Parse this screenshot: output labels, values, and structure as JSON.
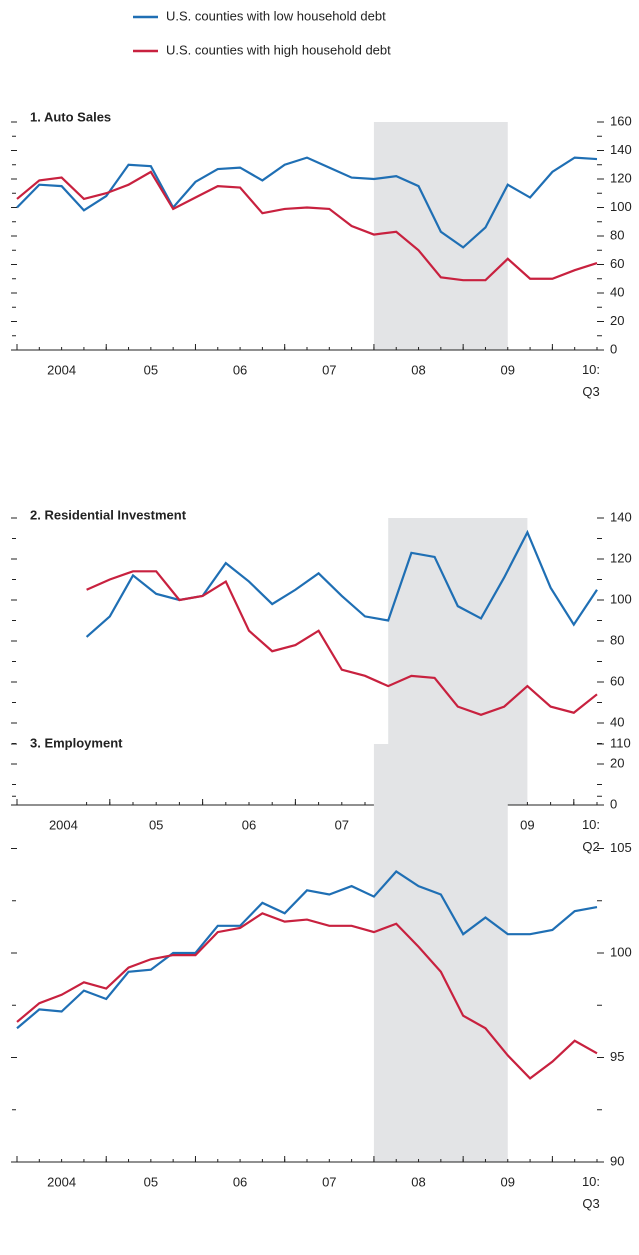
{
  "chart_data": [
    {
      "type": "line",
      "title": "1. Auto Sales",
      "x": [
        2004,
        2004.25,
        2004.5,
        2004.75,
        2005,
        2005.25,
        2005.5,
        2005.75,
        2006,
        2006.25,
        2006.5,
        2006.75,
        2007,
        2007.25,
        2007.5,
        2007.75,
        2008,
        2008.25,
        2008.5,
        2008.75,
        2009,
        2009.25,
        2009.5,
        2009.75,
        2010,
        2010.25,
        2010.5
      ],
      "xlim": [
        2004,
        2010.5
      ],
      "xticks": [
        2004,
        2005,
        2006,
        2007,
        2008,
        2009,
        2010
      ],
      "xlabels": [
        {
          "value": 2004.5,
          "label": "2004"
        },
        {
          "value": 2005.5,
          "label": "05"
        },
        {
          "value": 2006.5,
          "label": "06"
        },
        {
          "value": 2007.5,
          "label": "07"
        },
        {
          "value": 2008.5,
          "label": "08"
        },
        {
          "value": 2009.5,
          "label": "09"
        },
        {
          "value": 2010.5,
          "label": "10:\nQ3"
        }
      ],
      "ylim": [
        0,
        160
      ],
      "yticks": [
        0,
        20,
        40,
        60,
        80,
        100,
        120,
        140,
        160
      ],
      "yminorticks": [
        10,
        30,
        50,
        70,
        90,
        110,
        130,
        150
      ],
      "shade": [
        2008,
        2009.5
      ],
      "series": [
        {
          "name": "U.S. counties with low household debt",
          "color": "#1f6fb4",
          "values": [
            100,
            116,
            115,
            98,
            108,
            130,
            129,
            100,
            118,
            127,
            128,
            119,
            130,
            135,
            128,
            121,
            120,
            122,
            115,
            83,
            72,
            86,
            116,
            107,
            125,
            135,
            134
          ]
        },
        {
          "name": "U.S. counties with high household debt",
          "color": "#c8213f",
          "values": [
            106,
            119,
            121,
            106,
            110,
            116,
            125,
            99,
            107,
            115,
            114,
            96,
            99,
            100,
            99,
            87,
            81,
            83,
            70,
            51,
            49,
            49,
            64,
            50,
            50,
            56,
            61
          ]
        }
      ]
    },
    {
      "type": "line",
      "title": "2. Residential Investment",
      "x": [
        2004.75,
        2005,
        2005.25,
        2005.5,
        2005.75,
        2006,
        2006.25,
        2006.5,
        2006.75,
        2007,
        2007.25,
        2007.5,
        2007.75,
        2008,
        2008.25,
        2008.5,
        2008.75,
        2009,
        2009.25,
        2009.5,
        2009.75,
        2010,
        2010.25
      ],
      "xlim": [
        2004,
        2010.25
      ],
      "xticks": [
        2004,
        2005,
        2006,
        2007,
        2008,
        2009,
        2010
      ],
      "xlabels": [
        {
          "value": 2004.5,
          "label": "2004"
        },
        {
          "value": 2005.5,
          "label": "05"
        },
        {
          "value": 2006.5,
          "label": "06"
        },
        {
          "value": 2007.5,
          "label": "07"
        },
        {
          "value": 2008.5,
          "label": "08"
        },
        {
          "value": 2009.5,
          "label": "09"
        },
        {
          "value": 2010.25,
          "label": "10:\nQ2"
        }
      ],
      "ylim": [
        0,
        140
      ],
      "yticks": [
        0,
        20,
        40,
        60,
        80,
        100,
        120,
        140
      ],
      "yminorticks": [
        10,
        30,
        50,
        70,
        90,
        110,
        130
      ],
      "shade": [
        2008,
        2009.5
      ],
      "series": [
        {
          "color": "#1f6fb4",
          "values": [
            82,
            92,
            112,
            103,
            100,
            102,
            118,
            109,
            98,
            105,
            113,
            102,
            92,
            90,
            123,
            121,
            97,
            91,
            111,
            133,
            106,
            88,
            105
          ]
        },
        {
          "color": "#c8213f",
          "values": [
            105,
            110,
            114,
            114,
            100,
            102,
            109,
            85,
            75,
            78,
            85,
            66,
            63,
            58,
            63,
            62,
            48,
            44,
            48,
            58,
            48,
            45,
            54
          ]
        }
      ]
    },
    {
      "type": "line",
      "title": "3. Employment",
      "x": [
        2004,
        2004.25,
        2004.5,
        2004.75,
        2005,
        2005.25,
        2005.5,
        2005.75,
        2006,
        2006.25,
        2006.5,
        2006.75,
        2007,
        2007.25,
        2007.5,
        2007.75,
        2008,
        2008.25,
        2008.5,
        2008.75,
        2009,
        2009.25,
        2009.5,
        2009.75,
        2010,
        2010.25,
        2010.5
      ],
      "xlim": [
        2004,
        2010.5
      ],
      "xticks": [
        2004,
        2005,
        2006,
        2007,
        2008,
        2009,
        2010
      ],
      "xlabels": [
        {
          "value": 2004.5,
          "label": "2004"
        },
        {
          "value": 2005.5,
          "label": "05"
        },
        {
          "value": 2006.5,
          "label": "06"
        },
        {
          "value": 2007.5,
          "label": "07"
        },
        {
          "value": 2008.5,
          "label": "08"
        },
        {
          "value": 2009.5,
          "label": "09"
        },
        {
          "value": 2010.5,
          "label": "10:\nQ3"
        }
      ],
      "ylim": [
        90,
        110
      ],
      "yticks": [
        90,
        95,
        100,
        105,
        110
      ],
      "yminorticks": [
        92.5,
        97.5,
        102.5,
        107.5
      ],
      "shade": [
        2008,
        2009.5
      ],
      "series": [
        {
          "color": "#1f6fb4",
          "values": [
            96.4,
            97.3,
            97.2,
            98.2,
            97.8,
            99.1,
            99.2,
            100.0,
            100.0,
            101.3,
            101.3,
            102.4,
            101.9,
            103.0,
            102.8,
            103.2,
            102.7,
            103.9,
            103.2,
            102.8,
            100.9,
            101.7,
            100.9,
            100.9,
            101.1,
            102.0,
            102.2
          ]
        },
        {
          "color": "#c8213f",
          "values": [
            96.7,
            97.6,
            98.0,
            98.6,
            98.3,
            99.3,
            99.7,
            99.9,
            99.9,
            101.0,
            101.2,
            101.9,
            101.5,
            101.6,
            101.3,
            101.3,
            101.0,
            101.4,
            100.3,
            99.1,
            97.0,
            96.4,
            95.1,
            94.0,
            94.8,
            95.8,
            95.2
          ]
        }
      ]
    }
  ]
}
